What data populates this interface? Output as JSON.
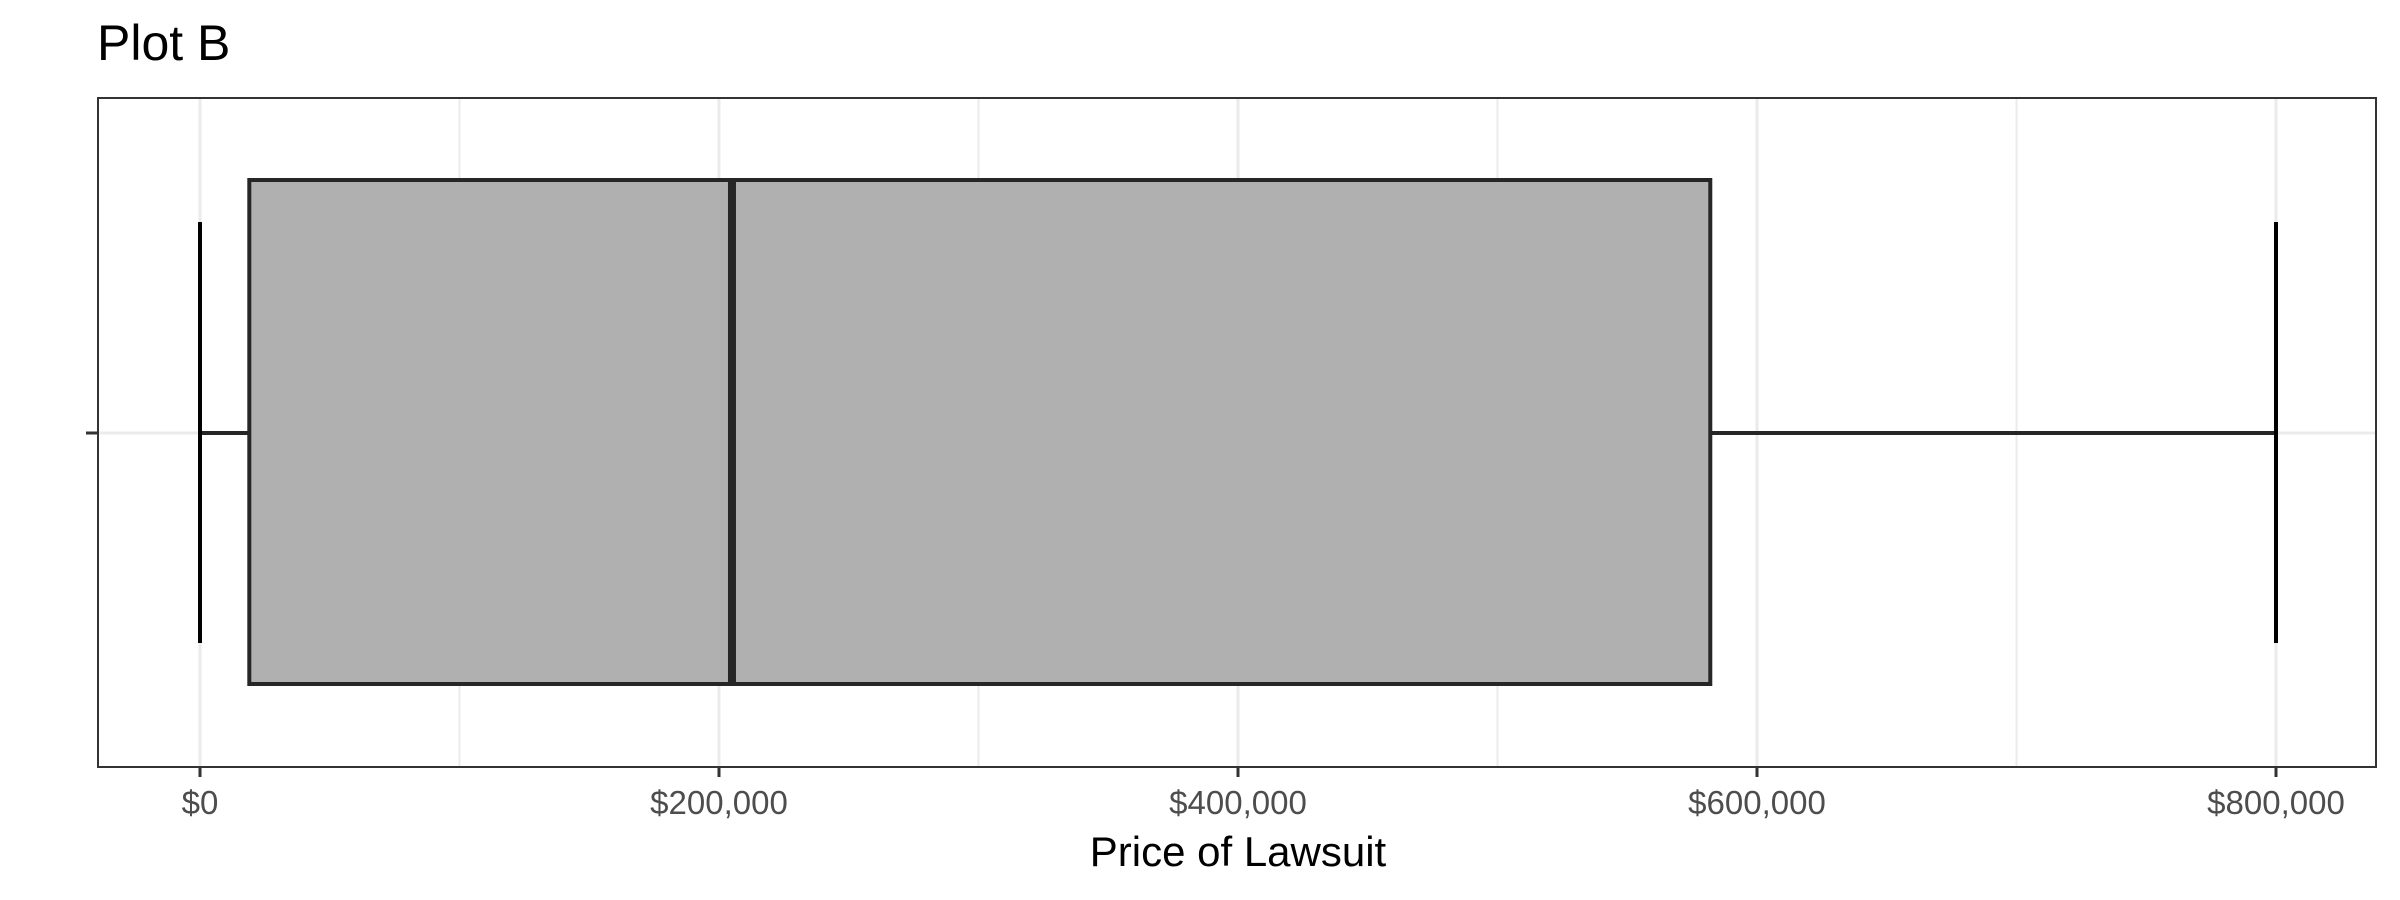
{
  "chart_data": {
    "type": "boxplot",
    "title": "Plot B",
    "xlabel": "Price of Lawsuit",
    "ylabel": "",
    "orientation": "horizontal",
    "xlim": [
      -100000,
      842000
    ],
    "x_ticks": [
      0,
      200000,
      400000,
      600000,
      800000
    ],
    "x_tick_labels": [
      "$0",
      "$200,000",
      "$400,000",
      "$600,000",
      "$800,000"
    ],
    "minor_gridlines": [
      100000,
      300000,
      500000,
      700000
    ],
    "grid": true,
    "box": {
      "min": 0,
      "q1": 19000,
      "median": 205000,
      "q3": 582000,
      "max": 800000
    },
    "colors": {
      "box_fill": "#b0b0b0",
      "box_stroke": "#262626",
      "grid": "#ebebeb",
      "panel_border": "#333333",
      "tick_text": "#4d4d4d"
    }
  }
}
